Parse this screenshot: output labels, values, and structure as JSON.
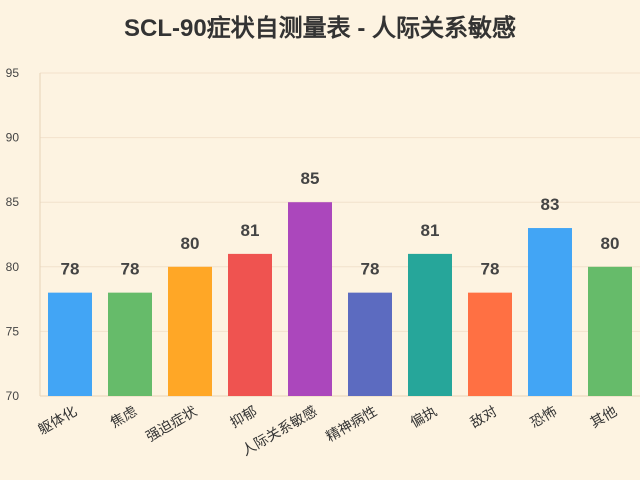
{
  "chart_data": {
    "type": "bar",
    "title": "SCL-90症状自测量表 - 人际关系敏感",
    "xlabel": "",
    "ylabel": "",
    "categories": [
      "躯体化",
      "焦虑",
      "强迫症状",
      "抑郁",
      "人际关系敏感",
      "精神病性",
      "偏执",
      "敌对",
      "恐怖",
      "其他"
    ],
    "values": [
      78,
      78,
      80,
      81,
      85,
      78,
      81,
      78,
      83,
      80
    ],
    "data_labels": [
      "78",
      "78",
      "80",
      "81",
      "85",
      "78",
      "81",
      "78",
      "83",
      "80"
    ],
    "colors": [
      "#42a5f5",
      "#66bb6a",
      "#ffa726",
      "#ef5350",
      "#ab47bc",
      "#5c6bc0",
      "#26a69a",
      "#ff7043",
      "#42a5f5",
      "#66bb6a"
    ],
    "ylim": [
      70,
      95
    ],
    "yticks": [
      70,
      75,
      80,
      85,
      90,
      95
    ],
    "grid": true,
    "legend": "none"
  },
  "colors": {
    "background": "#fdf3e1",
    "grid": "#f2e2cc",
    "axis": "#e6d3b8"
  }
}
